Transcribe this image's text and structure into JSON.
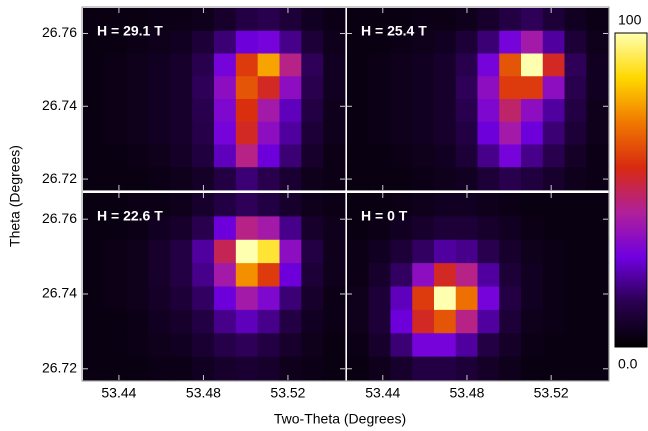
{
  "chart_data": {
    "type": "heatmap",
    "xlabel": "Two-Theta (Degrees)",
    "ylabel": "Theta (Degrees)",
    "xlim": [
      53.423,
      53.547
    ],
    "ylim": [
      26.717,
      26.767
    ],
    "xticks": [
      53.44,
      53.48,
      53.52
    ],
    "yticks": [
      26.72,
      26.74,
      26.76
    ],
    "zlim": [
      0,
      100
    ],
    "zticks": [
      {
        "value": 0,
        "label": "0.0"
      },
      100
    ],
    "colormap": [
      "#000000",
      "#2a0050",
      "#7000e0",
      "#b0209a",
      "#d82a10",
      "#f07800",
      "#ffd800",
      "#ffffb0"
    ],
    "panels": [
      {
        "title": "H = 29.1 T",
        "values": [
          [
            3,
            3,
            3,
            4,
            4,
            5,
            8,
            12,
            14,
            10,
            6,
            4
          ],
          [
            3,
            3,
            4,
            5,
            6,
            10,
            18,
            28,
            30,
            20,
            10,
            5
          ],
          [
            3,
            4,
            5,
            6,
            8,
            14,
            30,
            60,
            78,
            45,
            15,
            6
          ],
          [
            3,
            4,
            5,
            6,
            8,
            15,
            35,
            65,
            55,
            35,
            14,
            6
          ],
          [
            3,
            4,
            5,
            6,
            8,
            14,
            32,
            58,
            40,
            25,
            12,
            5
          ],
          [
            3,
            4,
            5,
            6,
            8,
            13,
            30,
            55,
            35,
            22,
            10,
            5
          ],
          [
            3,
            3,
            4,
            5,
            7,
            11,
            25,
            45,
            28,
            18,
            8,
            4
          ],
          [
            3,
            3,
            3,
            4,
            5,
            7,
            12,
            18,
            14,
            9,
            5,
            4
          ]
        ]
      },
      {
        "title": "H = 25.4 T",
        "values": [
          [
            3,
            3,
            3,
            4,
            4,
            5,
            8,
            12,
            15,
            10,
            6,
            4
          ],
          [
            3,
            3,
            4,
            5,
            6,
            10,
            18,
            30,
            40,
            22,
            10,
            5
          ],
          [
            3,
            4,
            5,
            6,
            8,
            14,
            30,
            65,
            100,
            55,
            15,
            6
          ],
          [
            3,
            4,
            5,
            6,
            8,
            15,
            35,
            60,
            60,
            35,
            14,
            6
          ],
          [
            3,
            4,
            5,
            6,
            8,
            14,
            32,
            48,
            35,
            22,
            12,
            5
          ],
          [
            3,
            4,
            5,
            6,
            8,
            12,
            28,
            40,
            28,
            18,
            10,
            5
          ],
          [
            3,
            3,
            4,
            5,
            6,
            10,
            20,
            30,
            20,
            14,
            7,
            4
          ],
          [
            3,
            3,
            3,
            4,
            5,
            6,
            10,
            14,
            11,
            8,
            5,
            4
          ]
        ]
      },
      {
        "title": "H = 22.6 T",
        "values": [
          [
            3,
            3,
            4,
            4,
            5,
            8,
            12,
            15,
            12,
            8,
            5,
            4
          ],
          [
            3,
            3,
            4,
            6,
            8,
            14,
            28,
            45,
            40,
            20,
            8,
            5
          ],
          [
            3,
            4,
            5,
            8,
            12,
            22,
            50,
            100,
            90,
            35,
            12,
            5
          ],
          [
            3,
            4,
            5,
            8,
            12,
            20,
            40,
            75,
            60,
            28,
            10,
            5
          ],
          [
            3,
            4,
            5,
            7,
            10,
            16,
            28,
            40,
            32,
            18,
            8,
            4
          ],
          [
            3,
            3,
            4,
            6,
            8,
            12,
            20,
            25,
            20,
            12,
            6,
            4
          ],
          [
            3,
            3,
            4,
            5,
            6,
            9,
            13,
            15,
            12,
            8,
            5,
            3
          ],
          [
            3,
            3,
            3,
            4,
            4,
            6,
            8,
            9,
            8,
            5,
            4,
            3
          ]
        ]
      },
      {
        "title": "H = 0 T",
        "values": [
          [
            3,
            3,
            4,
            5,
            6,
            6,
            5,
            4,
            3,
            3,
            3,
            3
          ],
          [
            3,
            4,
            6,
            8,
            10,
            10,
            8,
            6,
            4,
            3,
            3,
            3
          ],
          [
            4,
            6,
            10,
            16,
            22,
            20,
            14,
            8,
            5,
            4,
            3,
            3
          ],
          [
            4,
            8,
            16,
            35,
            55,
            45,
            22,
            10,
            6,
            4,
            3,
            3
          ],
          [
            5,
            10,
            25,
            60,
            100,
            70,
            30,
            12,
            6,
            4,
            3,
            3
          ],
          [
            5,
            10,
            28,
            55,
            65,
            45,
            22,
            10,
            5,
            4,
            3,
            3
          ],
          [
            4,
            8,
            18,
            30,
            30,
            22,
            12,
            7,
            4,
            3,
            3,
            3
          ],
          [
            3,
            5,
            8,
            12,
            12,
            10,
            7,
            5,
            3,
            3,
            3,
            3
          ]
        ]
      }
    ]
  }
}
